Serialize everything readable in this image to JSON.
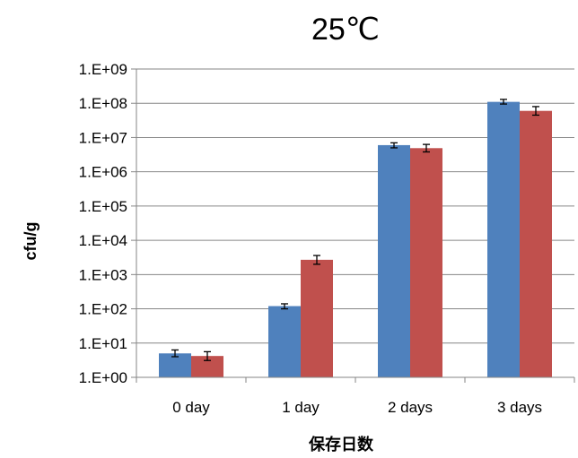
{
  "chart_data": {
    "type": "bar",
    "title": "25℃",
    "xlabel": "保存日数",
    "ylabel": "cfu/g",
    "y_scale": "log",
    "ylim": [
      1,
      1000000000
    ],
    "y_tick_labels": [
      "1.E+00",
      "1.E+01",
      "1.E+02",
      "1.E+03",
      "1.E+04",
      "1.E+05",
      "1.E+06",
      "1.E+07",
      "1.E+08",
      "1.E+09"
    ],
    "categories": [
      "0 day",
      "1 day",
      "2 days",
      "3 days"
    ],
    "grid": true,
    "legend": "none",
    "series": [
      {
        "color": "#4f81bd",
        "values": [
          5,
          120,
          6000000,
          110000000
        ],
        "err_low": [
          4,
          100,
          5000000,
          95000000
        ],
        "err_high": [
          6.3,
          140,
          7000000,
          130000000
        ]
      },
      {
        "color": "#c0504d",
        "values": [
          4.2,
          2700,
          4900000,
          60000000
        ],
        "err_low": [
          3.1,
          2000,
          3800000,
          45000000
        ],
        "err_high": [
          5.6,
          3600,
          6300000,
          80000000
        ]
      }
    ]
  }
}
